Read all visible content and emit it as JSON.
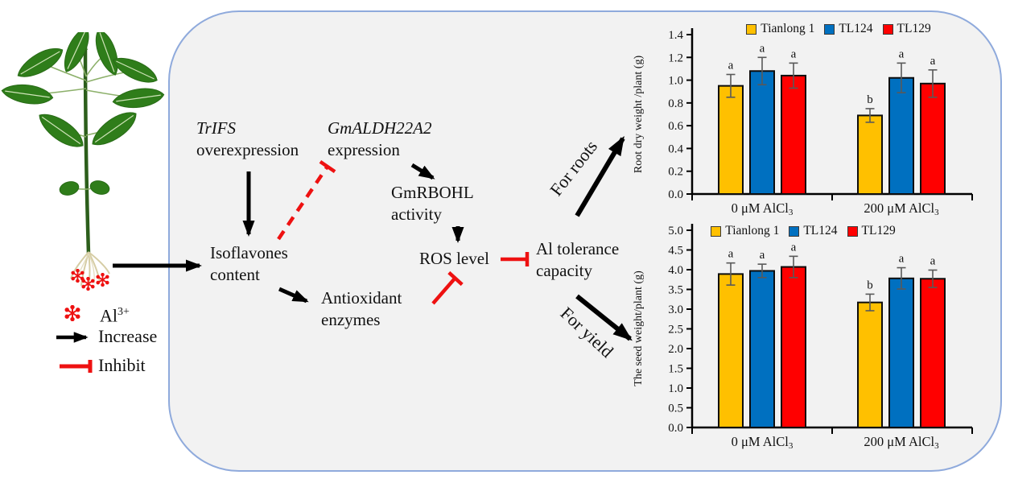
{
  "legend": {
    "al_ion": {
      "text": "Al",
      "sup": "3+"
    },
    "increase": "Increase",
    "inhibit": "Inhibit"
  },
  "pathway": {
    "trifs_line1": "TrIFS",
    "trifs_line2": "overexpression",
    "gmaldh_line1": "GmALDH22A2",
    "gmaldh_line2": "expression",
    "gmrbohl_line1": "GmRBOHL",
    "gmrbohl_line2": "activity",
    "ros": "ROS level",
    "isoflavones_line1": "Isoflavones",
    "isoflavones_line2": "content",
    "antioxidant_line1": "Antioxidant",
    "antioxidant_line2": "enzymes",
    "al_tolerance_line1": "Al tolerance",
    "al_tolerance_line2": "capacity",
    "for_roots": "For roots",
    "for_yield": "For yield"
  },
  "colors": {
    "panel_bg": "#f2f2f2",
    "panel_border": "#8faadc",
    "increase_arrow": "#000000",
    "inhibit_line": "#ff0000",
    "tianlong1": "#FFC000",
    "tl124": "#0070C0",
    "tl129": "#FF0000",
    "error_bar": "#595959"
  },
  "chart_data": [
    {
      "type": "bar",
      "ylabel": "Root dry weight /plant  (g)",
      "ylim": [
        0,
        1.4
      ],
      "ytick_step": 0.2,
      "ytick_decimals": 1,
      "grid": false,
      "legend_position": "top",
      "categories": [
        {
          "text": "0 μM AlCl",
          "sub": "3"
        },
        {
          "text": "200 μM AlCl",
          "sub": "3"
        }
      ],
      "series": [
        {
          "name": "Tianlong 1",
          "color": "#FFC000",
          "values": [
            0.95,
            0.69
          ],
          "errors": [
            0.1,
            0.06
          ],
          "letters": [
            "a",
            "b"
          ]
        },
        {
          "name": "TL124",
          "color": "#0070C0",
          "values": [
            1.08,
            1.02
          ],
          "errors": [
            0.12,
            0.13
          ],
          "letters": [
            "a",
            "a"
          ]
        },
        {
          "name": "TL129",
          "color": "#FF0000",
          "values": [
            1.04,
            0.97
          ],
          "errors": [
            0.11,
            0.12
          ],
          "letters": [
            "a",
            "a"
          ]
        }
      ]
    },
    {
      "type": "bar",
      "ylabel": "The seed weight/plant  (g)",
      "ylim": [
        0,
        5.0
      ],
      "ytick_step": 0.5,
      "ytick_decimals": 1,
      "grid": false,
      "legend_position": "top",
      "categories": [
        {
          "text": "0 μM AlCl",
          "sub": "3"
        },
        {
          "text": "200 μM AlCl",
          "sub": "3"
        }
      ],
      "series": [
        {
          "name": "Tianlong 1",
          "color": "#FFC000",
          "values": [
            3.89,
            3.17
          ],
          "errors": [
            0.28,
            0.21
          ],
          "letters": [
            "a",
            "b"
          ]
        },
        {
          "name": "TL124",
          "color": "#0070C0",
          "values": [
            3.97,
            3.78
          ],
          "errors": [
            0.17,
            0.27
          ],
          "letters": [
            "a",
            "a"
          ]
        },
        {
          "name": "TL129",
          "color": "#FF0000",
          "values": [
            4.07,
            3.77
          ],
          "errors": [
            0.27,
            0.22
          ],
          "letters": [
            "a",
            "a"
          ]
        }
      ]
    }
  ]
}
